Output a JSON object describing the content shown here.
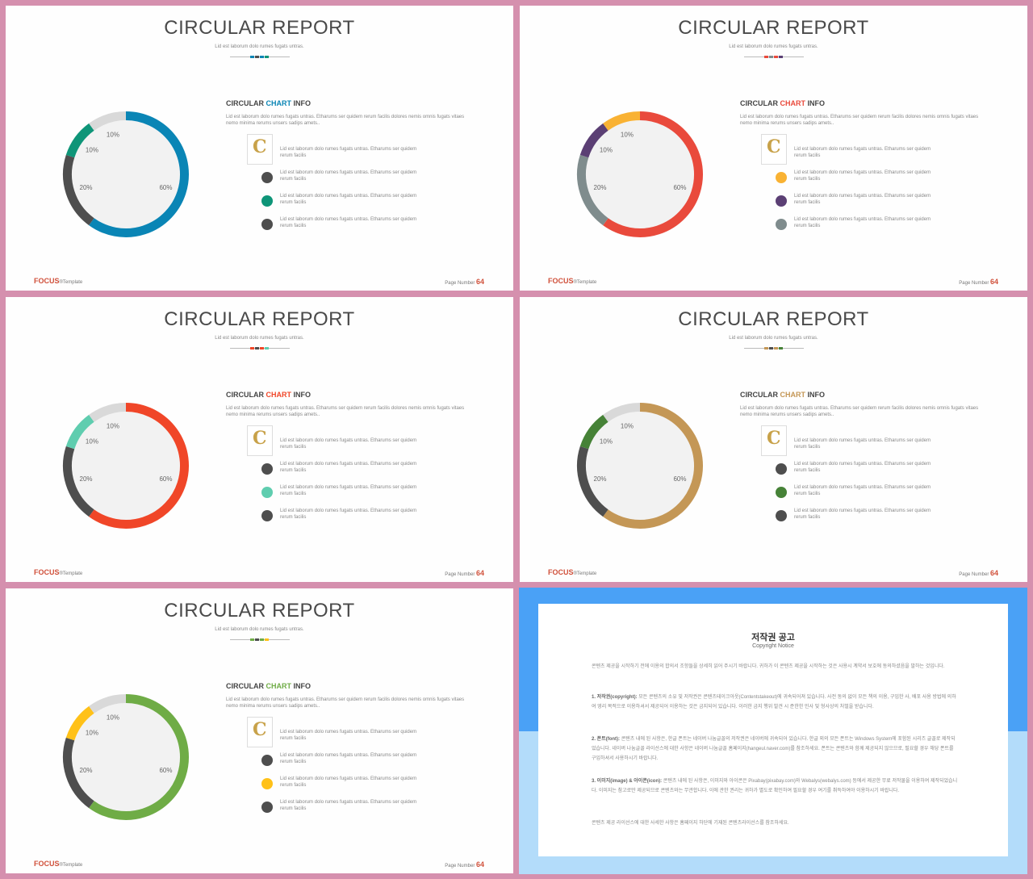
{
  "slide_common": {
    "title": "CIRCULAR REPORT",
    "subtitle": "Lid est laborum dolo rumes fugats untras.",
    "info_title_pre": "CIRCULAR ",
    "info_title_accent": "CHART",
    "info_title_post": " INFO",
    "info_text": "Lid est laborum dolo rumes fugats untras. Etharums ser quidem rerum facilis dolores nemis omnis fugats vitaes nemo minima rerums unsers sadips amets..",
    "legend_text": "Lid est laborum dolo rumes fugats untras. Etharums ser quidem rerum facilis",
    "brand": "FOCUS",
    "brand_suffix": "®Template",
    "page_label": "Page Number ",
    "page_number": "64",
    "logo_letter": "C"
  },
  "slides": [
    {
      "colors": [
        "#0a85b5",
        "#4e4e4e",
        "#0e9578",
        "#d9d9d9"
      ],
      "legend_colors": [
        "#0a85b5",
        "#4e4e4e",
        "#0e9578",
        "#4e4e4e"
      ]
    },
    {
      "colors": [
        "#e94a3c",
        "#7f8c8d",
        "#5b3f74",
        "#f9b233"
      ],
      "legend_colors": [
        "#e94a3c",
        "#f9b233",
        "#5b3f74",
        "#7f8c8d"
      ]
    },
    {
      "colors": [
        "#f04628",
        "#4e4e4e",
        "#5fcdaf",
        "#d9d9d9"
      ],
      "legend_colors": [
        "#f04628",
        "#4e4e4e",
        "#5fcdaf",
        "#4e4e4e"
      ]
    },
    {
      "colors": [
        "#c49756",
        "#4e4e4e",
        "#468237",
        "#d9d9d9"
      ],
      "legend_colors": [
        "#c49756",
        "#4e4e4e",
        "#468237",
        "#4e4e4e"
      ]
    },
    {
      "colors": [
        "#6fac46",
        "#4e4e4e",
        "#ffc118",
        "#d9d9d9"
      ],
      "legend_colors": [
        "#6fac46",
        "#4e4e4e",
        "#ffc118",
        "#4e4e4e"
      ]
    }
  ],
  "chart_data": {
    "type": "pie",
    "categories": [
      "60%",
      "20%",
      "10%",
      "10%"
    ],
    "values": [
      60,
      20,
      10,
      10
    ]
  },
  "notice": {
    "title": "저작권 공고",
    "subtitle": "Copyright Notice",
    "intro": "콘텐츠 제공을 시작하기 전에 이용의 합의서 조항들을 상세히 읽어 주시기 바랍니다. 귀하가 이 콘텐츠 제공을 시작하는 것은 사용시 계약서 보호에 동의하셨음을 말하는 것입니다.",
    "p1_head": "1. 저작권(copyright): ",
    "p1_body": "모든 콘텐츠의 소유 및 저작권은 콘텐츠테이크아웃(Contentstakeout)에 귀속되어져 있습니다. 사전 동의 없이 모든 책의 이용, 구입한 사, 배포 사용 방법에 의하여 영리 목적으로 이용하셔서 제공되어 이용하는 것은 금지되어 있습니다. 이러한 금지 행위 발견 시 준한한 민사 및 형사상의 처벌을 받습니다.",
    "p2_head": "2. 폰트(font): ",
    "p2_body": "콘텐츠 내에 된 사항은, 한글 폰트는 네이버 나눔글꼴의 저작권은 네이버에 귀속되어 있습니다. 한글 외의 모든 폰트는 Windows System에 포함된 시리즈 글꼴로 제작되었습니다. 네이버 나눔글꼴 라이선스에 대한 사항은 네이버 나눔글꼴 홈페이지(hangeul.naver.com)를 참조하세요. 폰트는 콘텐츠와 함께 제공되지 않으므로, 필요할 경우 해당 폰트를 구입하셔서 사용하시기 바랍니다.",
    "p3_head": "3. 이미지(image) & 아이콘(icon): ",
    "p3_body": "콘텐츠 내에 된 사항은, 이미지와 아이콘은 Pixabay(pixabay.com)와 Webalys(webalys.com) 등에서 제공한 무료 저작물을 이용하여 제작되었습니다. 이미지는 참고로만 제공되므로 콘텐츠와는 무관합니다. 이에 관한 권리는 귀하가 별도로 확인하여 필요할 경우 여기를 취득하여야 이용하시기 바랍니다.",
    "outro": "콘텐츠 제공 라이선스에 대한 사세한 사항은 홈페이지 하단에 기재된 콘텐츠라이선스를 참조하세요."
  }
}
